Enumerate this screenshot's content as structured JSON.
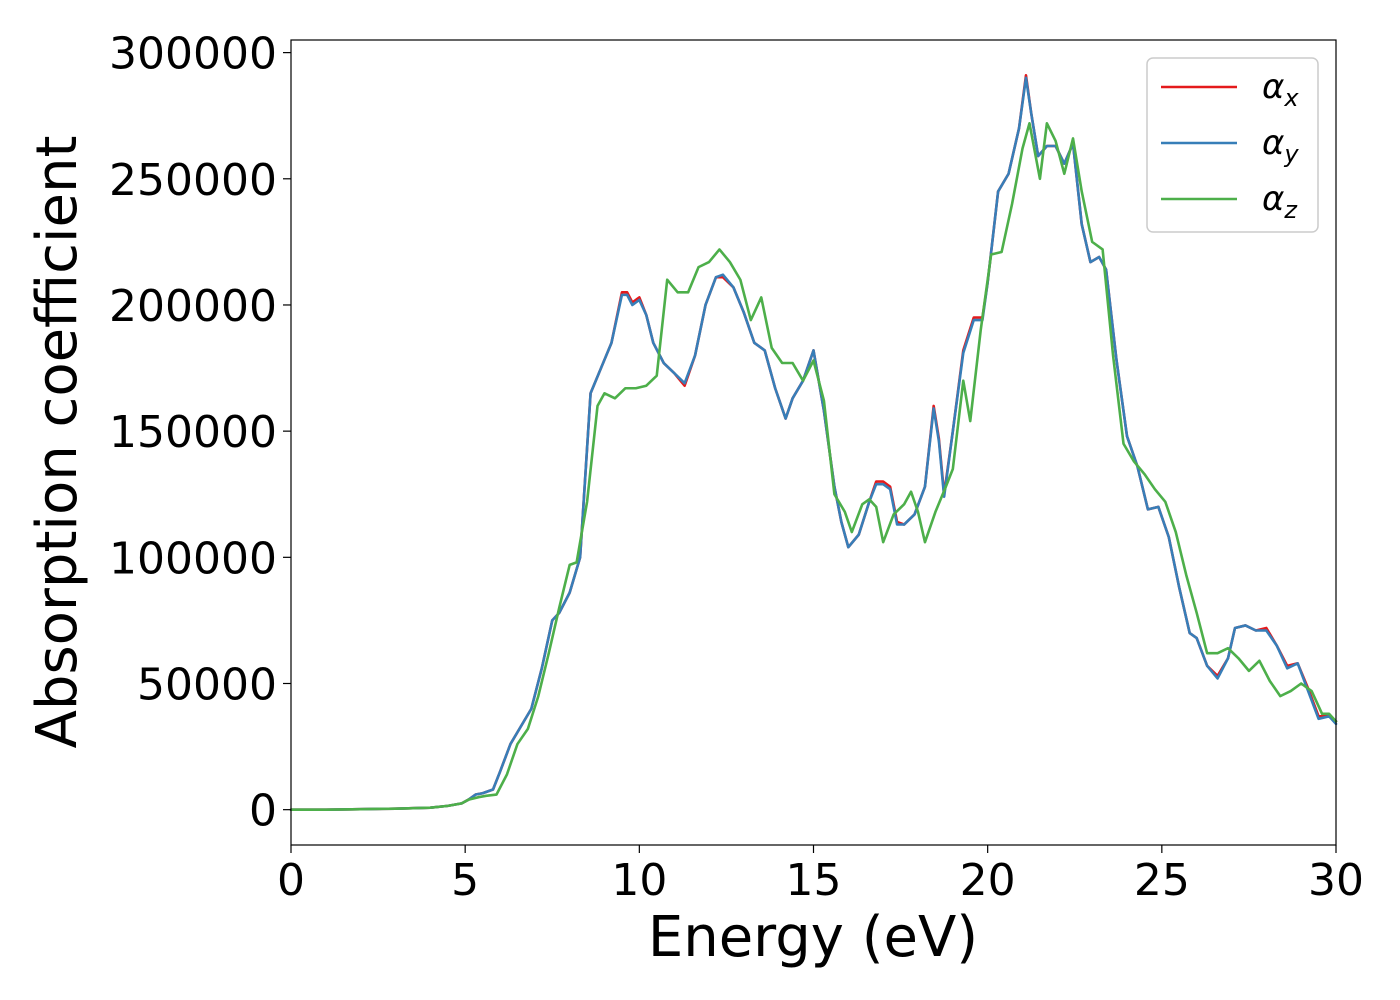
{
  "chart_data": {
    "type": "line",
    "xlabel": "Energy (eV)",
    "ylabel": "Absorption coefficient",
    "xlim": [
      0,
      30
    ],
    "ylim": [
      -14000,
      305000
    ],
    "xticks": [
      0,
      5,
      10,
      15,
      20,
      25,
      30
    ],
    "xtick_labels": [
      "0",
      "5",
      "10",
      "15",
      "20",
      "25",
      "30"
    ],
    "yticks": [
      0,
      50000,
      100000,
      150000,
      200000,
      250000,
      300000
    ],
    "ytick_labels": [
      "0",
      "50000",
      "100000",
      "150000",
      "200000",
      "250000",
      "300000"
    ],
    "grid": false,
    "legend_position": "top-right",
    "series": [
      {
        "name": "α_x",
        "legend_base": "α",
        "legend_sub": "x",
        "color": "#e41a1c",
        "x": [
          0,
          1,
          2,
          3,
          4,
          4.5,
          4.9,
          5.1,
          5.3,
          5.5,
          5.8,
          6.0,
          6.3,
          6.6,
          6.9,
          7.2,
          7.5,
          7.7,
          8.0,
          8.3,
          8.6,
          8.9,
          9.2,
          9.5,
          9.65,
          9.8,
          10.0,
          10.2,
          10.4,
          10.7,
          11.0,
          11.3,
          11.6,
          11.9,
          12.2,
          12.4,
          12.7,
          13.0,
          13.3,
          13.6,
          13.9,
          14.2,
          14.4,
          14.7,
          15.0,
          15.3,
          15.6,
          15.8,
          16.0,
          16.3,
          16.6,
          16.8,
          17.0,
          17.2,
          17.4,
          17.6,
          17.9,
          18.2,
          18.45,
          18.6,
          18.75,
          19.0,
          19.3,
          19.6,
          19.85,
          20.0,
          20.3,
          20.6,
          20.9,
          21.1,
          21.25,
          21.45,
          21.7,
          21.95,
          22.2,
          22.45,
          22.7,
          22.95,
          23.2,
          23.4,
          23.7,
          24.0,
          24.3,
          24.6,
          24.9,
          25.2,
          25.5,
          25.8,
          26.0,
          26.3,
          26.6,
          26.9,
          27.1,
          27.4,
          27.7,
          28.0,
          28.3,
          28.6,
          28.9,
          29.2,
          29.5,
          29.8,
          30.0
        ],
        "values": [
          0,
          0,
          200,
          400,
          800,
          1500,
          2500,
          4000,
          6000,
          6500,
          8000,
          15000,
          26000,
          33000,
          40000,
          56000,
          75000,
          78000,
          86000,
          100000,
          165000,
          175000,
          185000,
          205000,
          205000,
          201000,
          203000,
          196000,
          185000,
          177000,
          173000,
          168000,
          180000,
          200000,
          211000,
          211000,
          207000,
          197000,
          185000,
          182000,
          167000,
          155000,
          163000,
          170000,
          182000,
          158000,
          128000,
          114000,
          104000,
          109000,
          122000,
          130000,
          130000,
          128000,
          114000,
          113000,
          117000,
          128000,
          160000,
          147000,
          125000,
          150000,
          182000,
          195000,
          195000,
          209000,
          245000,
          252000,
          270000,
          291000,
          276000,
          259000,
          263000,
          263000,
          256000,
          264000,
          232000,
          217000,
          219000,
          214000,
          178000,
          148000,
          136000,
          119000,
          120000,
          108000,
          88000,
          70000,
          68000,
          57000,
          53000,
          60000,
          72000,
          73000,
          71000,
          72000,
          65000,
          57000,
          58000,
          48000,
          37000,
          37000,
          35000
        ]
      },
      {
        "name": "α_y",
        "legend_base": "α",
        "legend_sub": "y",
        "color": "#377eb8",
        "x": [
          0,
          1,
          2,
          3,
          4,
          4.5,
          4.9,
          5.1,
          5.3,
          5.5,
          5.8,
          6.0,
          6.3,
          6.6,
          6.9,
          7.2,
          7.5,
          7.7,
          8.0,
          8.3,
          8.6,
          8.9,
          9.2,
          9.5,
          9.65,
          9.8,
          10.0,
          10.2,
          10.4,
          10.7,
          11.0,
          11.3,
          11.6,
          11.9,
          12.2,
          12.4,
          12.7,
          13.0,
          13.3,
          13.6,
          13.9,
          14.2,
          14.4,
          14.7,
          15.0,
          15.3,
          15.6,
          15.8,
          16.0,
          16.3,
          16.6,
          16.8,
          17.0,
          17.2,
          17.4,
          17.6,
          17.9,
          18.2,
          18.45,
          18.6,
          18.75,
          19.0,
          19.3,
          19.6,
          19.85,
          20.0,
          20.3,
          20.6,
          20.9,
          21.1,
          21.25,
          21.45,
          21.7,
          21.95,
          22.2,
          22.45,
          22.7,
          22.95,
          23.2,
          23.4,
          23.7,
          24.0,
          24.3,
          24.6,
          24.9,
          25.2,
          25.5,
          25.8,
          26.0,
          26.3,
          26.6,
          26.9,
          27.1,
          27.4,
          27.7,
          28.0,
          28.3,
          28.6,
          28.9,
          29.2,
          29.5,
          29.8,
          30.0
        ],
        "values": [
          0,
          0,
          200,
          400,
          800,
          1500,
          2500,
          4000,
          6000,
          6500,
          8000,
          15000,
          26000,
          33000,
          40000,
          56000,
          75000,
          78000,
          86000,
          100000,
          165000,
          175000,
          185000,
          204000,
          204000,
          200000,
          202000,
          196000,
          185000,
          177000,
          173000,
          169000,
          180000,
          200000,
          211000,
          212000,
          207000,
          197000,
          185000,
          182000,
          167000,
          155000,
          163000,
          170000,
          182000,
          158000,
          128000,
          114000,
          104000,
          109000,
          122000,
          129000,
          129000,
          127000,
          113000,
          113000,
          117000,
          128000,
          159000,
          146000,
          124000,
          150000,
          181000,
          194000,
          194000,
          209000,
          245000,
          252000,
          270000,
          290000,
          276000,
          259000,
          263000,
          263000,
          256000,
          264000,
          232000,
          217000,
          219000,
          214000,
          178000,
          148000,
          136000,
          119000,
          120000,
          108000,
          88000,
          70000,
          68000,
          57000,
          52000,
          60000,
          72000,
          73000,
          71000,
          71000,
          65000,
          56000,
          58000,
          47000,
          36000,
          37000,
          34000
        ]
      },
      {
        "name": "α_z",
        "legend_base": "α",
        "legend_sub": "z",
        "color": "#4daf4a",
        "x": [
          0,
          1,
          2,
          3,
          4,
          4.5,
          4.9,
          5.1,
          5.4,
          5.6,
          5.9,
          6.2,
          6.5,
          6.8,
          7.1,
          7.4,
          7.7,
          8.0,
          8.2,
          8.5,
          8.8,
          9.0,
          9.3,
          9.6,
          9.9,
          10.2,
          10.5,
          10.8,
          11.1,
          11.4,
          11.7,
          12.0,
          12.3,
          12.6,
          12.9,
          13.2,
          13.5,
          13.8,
          14.1,
          14.4,
          14.7,
          15.0,
          15.3,
          15.6,
          15.9,
          16.1,
          16.4,
          16.6,
          16.8,
          17.0,
          17.3,
          17.6,
          17.8,
          18.0,
          18.2,
          18.5,
          18.8,
          19.0,
          19.3,
          19.5,
          19.8,
          20.1,
          20.4,
          20.7,
          21.0,
          21.2,
          21.5,
          21.7,
          21.95,
          22.2,
          22.45,
          22.7,
          23.0,
          23.3,
          23.6,
          23.9,
          24.2,
          24.5,
          24.8,
          25.1,
          25.4,
          25.7,
          26.0,
          26.3,
          26.6,
          26.9,
          27.2,
          27.5,
          27.8,
          28.1,
          28.4,
          28.7,
          29.0,
          29.3,
          29.6,
          29.8,
          30.0
        ],
        "values": [
          0,
          0,
          200,
          400,
          800,
          1500,
          2500,
          4000,
          5000,
          5500,
          6000,
          14000,
          26000,
          32000,
          45000,
          62000,
          80000,
          97000,
          98000,
          122000,
          160000,
          165000,
          163000,
          167000,
          167000,
          168000,
          172000,
          210000,
          205000,
          205000,
          215000,
          217000,
          222000,
          217000,
          210000,
          194000,
          203000,
          183000,
          177000,
          177000,
          170000,
          178000,
          162000,
          125000,
          118000,
          110000,
          121000,
          123000,
          120000,
          106000,
          117000,
          121000,
          126000,
          118000,
          106000,
          118000,
          128000,
          135000,
          170000,
          154000,
          190000,
          220000,
          221000,
          240000,
          262000,
          272000,
          250000,
          272000,
          265000,
          252000,
          266000,
          245000,
          225000,
          222000,
          180000,
          145000,
          138000,
          133000,
          127000,
          122000,
          110000,
          93000,
          78000,
          62000,
          62000,
          64000,
          60000,
          55000,
          59000,
          51000,
          45000,
          47000,
          50000,
          47000,
          38000,
          38000,
          35000
        ]
      }
    ]
  }
}
